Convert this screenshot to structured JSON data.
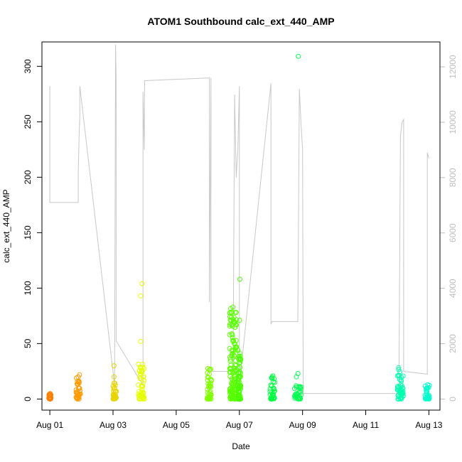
{
  "chart_data": {
    "type": "scatter",
    "title": "ATOM1 Southbound calc_ext_440_AMP",
    "xlabel": "Date",
    "ylabel": "calc_ext_440_AMP",
    "x_tick_labels": [
      "Aug 01",
      "Aug 03",
      "Aug 05",
      "Aug 07",
      "Aug 09",
      "Aug 11",
      "Aug 13"
    ],
    "x_tick_days": [
      1,
      3,
      5,
      7,
      9,
      11,
      13
    ],
    "xlim_days": [
      0.75,
      13.35
    ],
    "y_ticks": [
      0,
      50,
      100,
      150,
      200,
      250,
      300
    ],
    "ylim": [
      -10,
      322
    ],
    "y2_ticks": [
      0,
      2000,
      4000,
      6000,
      8000,
      10000,
      12000
    ],
    "y2lim": [
      -400,
      12900
    ],
    "y2_color": "#bebebe",
    "grid": false,
    "legend": "none",
    "point_marker": "open-circle",
    "clusters": [
      {
        "day": 1.0,
        "width": 0.08,
        "color": "#ff7f00",
        "max": 5,
        "outliers": []
      },
      {
        "day": 1.9,
        "width": 0.14,
        "color": "#ff9a00",
        "max": 22,
        "outliers": []
      },
      {
        "day": 3.05,
        "width": 0.12,
        "color": "#e8d400",
        "max": 15,
        "outliers": [
          20,
          30
        ]
      },
      {
        "day": 3.9,
        "width": 0.2,
        "color": "#e6ff00",
        "max": 32,
        "outliers": [
          52,
          93,
          104
        ]
      },
      {
        "day": 6.05,
        "width": 0.14,
        "color": "#80ff00",
        "max": 28,
        "outliers": []
      },
      {
        "day": 6.8,
        "width": 0.22,
        "color": "#5aff00",
        "max": 85,
        "outliers": []
      },
      {
        "day": 7.0,
        "width": 0.1,
        "color": "#4cff00",
        "max": 47,
        "outliers": [
          71,
          108
        ]
      },
      {
        "day": 8.05,
        "width": 0.16,
        "color": "#00ff40",
        "max": 22,
        "outliers": []
      },
      {
        "day": 8.85,
        "width": 0.22,
        "color": "#00ff50",
        "max": 12,
        "outliers": [
          20,
          23,
          309
        ]
      },
      {
        "day": 12.1,
        "width": 0.2,
        "color": "#00ffb0",
        "max": 30,
        "outliers": []
      },
      {
        "day": 12.95,
        "width": 0.14,
        "color": "#00ffcc",
        "max": 14,
        "outliers": []
      }
    ],
    "secondary_line": {
      "color": "#c8c8c8",
      "x_days": [
        1.0,
        1.0,
        1.9,
        1.9,
        1.93,
        1.95,
        1.95,
        3.05,
        3.08,
        3.1,
        3.1,
        3.95,
        3.95,
        3.97,
        3.99,
        4.0,
        6.05,
        6.05,
        6.1,
        6.1,
        6.8,
        6.85,
        6.9,
        6.95,
        7.0,
        7.0,
        8.0,
        8.0,
        8.03,
        8.85,
        8.9,
        8.95,
        9.0,
        9.02,
        12.05,
        12.1,
        12.15,
        12.2,
        12.2,
        12.95,
        12.95,
        13.0
      ],
      "y_values": [
        11300,
        7100,
        7100,
        8200,
        9600,
        10200,
        11300,
        500,
        12800,
        11500,
        2100,
        500,
        11100,
        10000,
        9000,
        11500,
        11600,
        3500,
        11600,
        1000,
        1000,
        11000,
        8000,
        9000,
        11300,
        500,
        11400,
        2700,
        2800,
        2800,
        11200,
        10000,
        9000,
        200,
        200,
        9500,
        10000,
        10100,
        1000,
        900,
        8900,
        8700
      ]
    }
  }
}
